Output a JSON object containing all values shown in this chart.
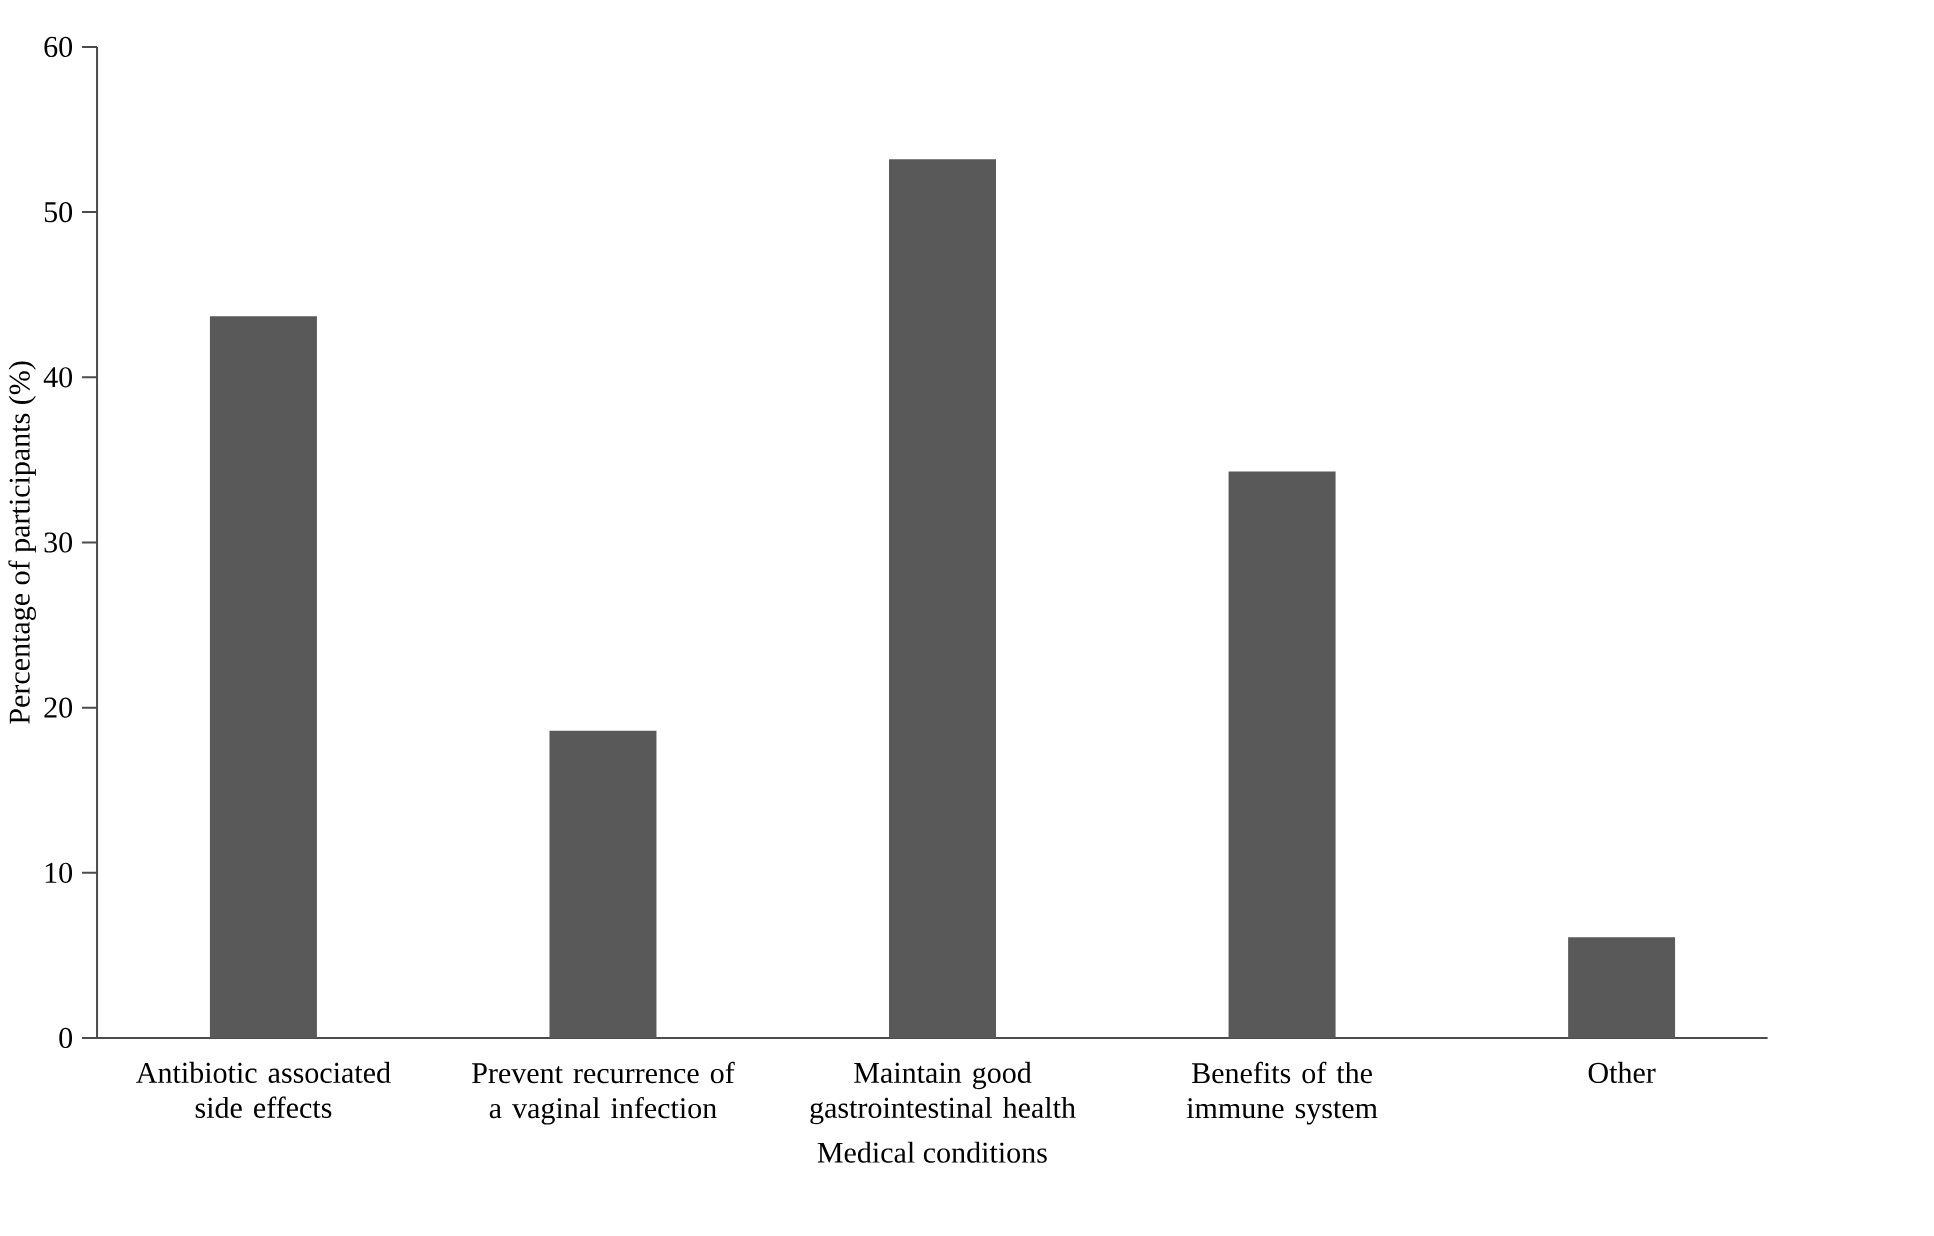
{
  "chart_data": {
    "type": "bar",
    "xlabel": "Medical conditions",
    "ylabel": "Percentage of participants (%)",
    "categories": [
      "Antibiotic associated side effects",
      "Prevent recurrence of a vaginal infection",
      "Maintain good gastrointestinal health",
      "Benefits of the immune system",
      "Other"
    ],
    "values": [
      43.7,
      18.6,
      53.2,
      34.3,
      6.1
    ],
    "color": "#595959",
    "ylim": [
      0,
      60
    ],
    "yticks": [
      0,
      10,
      20,
      30,
      40,
      50,
      60
    ]
  }
}
